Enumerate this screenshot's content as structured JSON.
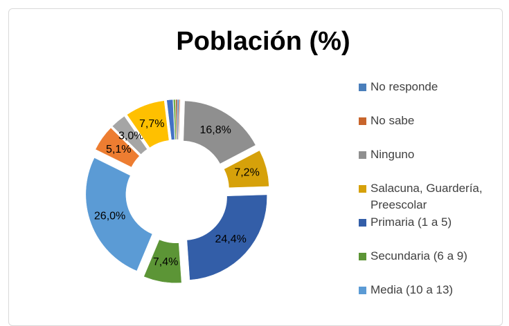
{
  "chart_data": {
    "type": "donut",
    "title": "Población (%)",
    "categories": [
      "No responde",
      "No sabe",
      "Ninguno",
      "Salacuna, Guardería, Preescolar",
      "Primaria (1 a 5)",
      "Secundaria (6 a 9)",
      "Media (10  a 13)",
      null,
      null,
      null,
      null,
      null,
      null
    ],
    "values": [
      0.3,
      0.2,
      16.8,
      7.2,
      24.4,
      7.4,
      26.0,
      5.1,
      3.0,
      7.7,
      1.2,
      0.4,
      0.3
    ],
    "value_labels": [
      null,
      null,
      "16,8%",
      "7,2%",
      "24,4%",
      "7,4%",
      "26,0%",
      "5,1%",
      "3,0%",
      "7,7%",
      null,
      null,
      null
    ],
    "colors": [
      "#4a7ebb",
      "#c8652c",
      "#8f8f8f",
      "#d6a10a",
      "#335ea8",
      "#5c9536",
      "#5b9bd5",
      "#ed7d31",
      "#a5a5a5",
      "#ffc000",
      "#4472c4",
      "#70ad47",
      "#a0522d"
    ],
    "legend": "right"
  }
}
